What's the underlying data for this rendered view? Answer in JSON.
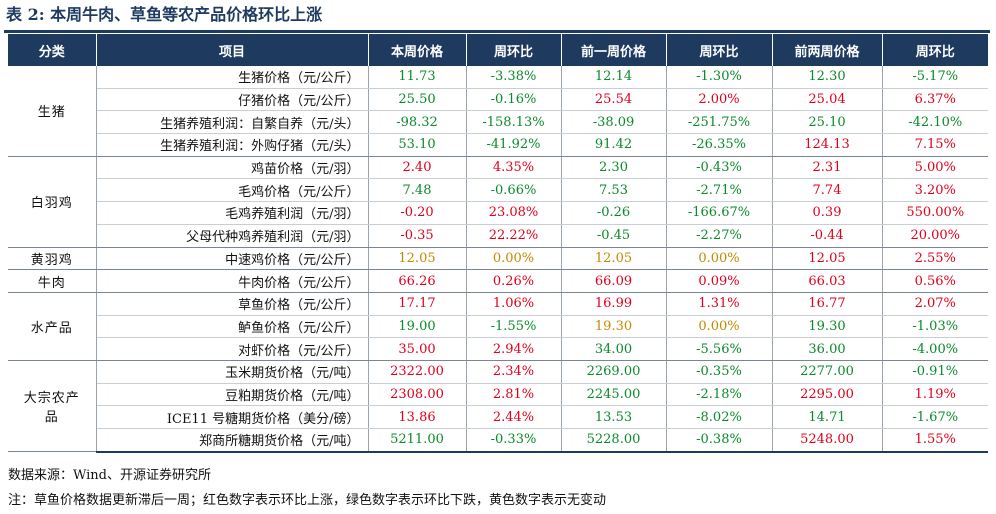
{
  "title": "表 2:  本周牛肉、草鱼等农产品价格环比上涨",
  "headers": [
    "分类",
    "项目",
    "本周价格",
    "周环比",
    "前一周价格",
    "周环比",
    "前两周价格",
    "周环比"
  ],
  "rows": [
    {
      "cat": "生猪",
      "span": 4,
      "item": "生猪价格（元/公斤）",
      "v": [
        [
          "11.73",
          "down"
        ],
        [
          "-3.38%",
          "down"
        ],
        [
          "12.14",
          "down"
        ],
        [
          "-1.30%",
          "down"
        ],
        [
          "12.30",
          "down"
        ],
        [
          "-5.17%",
          "down"
        ]
      ]
    },
    {
      "item": "仔猪价格（元/公斤）",
      "v": [
        [
          "25.50",
          "down"
        ],
        [
          "-0.16%",
          "down"
        ],
        [
          "25.54",
          "up"
        ],
        [
          "2.00%",
          "up"
        ],
        [
          "25.04",
          "up"
        ],
        [
          "6.37%",
          "up"
        ]
      ]
    },
    {
      "item": "生猪养殖利润：自繁自养（元/头）",
      "v": [
        [
          "-98.32",
          "down"
        ],
        [
          "-158.13%",
          "down"
        ],
        [
          "-38.09",
          "down"
        ],
        [
          "-251.75%",
          "down"
        ],
        [
          "25.10",
          "down"
        ],
        [
          "-42.10%",
          "down"
        ]
      ]
    },
    {
      "item": "生猪养殖利润：外购仔猪（元/头）",
      "v": [
        [
          "53.10",
          "down"
        ],
        [
          "-41.92%",
          "down"
        ],
        [
          "91.42",
          "down"
        ],
        [
          "-26.35%",
          "down"
        ],
        [
          "124.13",
          "up"
        ],
        [
          "7.15%",
          "up"
        ]
      ]
    },
    {
      "cat": "白羽鸡",
      "span": 4,
      "item": "鸡苗价格（元/羽）",
      "v": [
        [
          "2.40",
          "up"
        ],
        [
          "4.35%",
          "up"
        ],
        [
          "2.30",
          "down"
        ],
        [
          "-0.43%",
          "down"
        ],
        [
          "2.31",
          "up"
        ],
        [
          "5.00%",
          "up"
        ]
      ]
    },
    {
      "item": "毛鸡价格（元/公斤）",
      "v": [
        [
          "7.48",
          "down"
        ],
        [
          "-0.66%",
          "down"
        ],
        [
          "7.53",
          "down"
        ],
        [
          "-2.71%",
          "down"
        ],
        [
          "7.74",
          "up"
        ],
        [
          "3.20%",
          "up"
        ]
      ]
    },
    {
      "item": "毛鸡养殖利润（元/羽）",
      "v": [
        [
          "-0.20",
          "up"
        ],
        [
          "23.08%",
          "up"
        ],
        [
          "-0.26",
          "down"
        ],
        [
          "-166.67%",
          "down"
        ],
        [
          "0.39",
          "up"
        ],
        [
          "550.00%",
          "up"
        ]
      ]
    },
    {
      "item": "父母代种鸡养殖利润（元/羽）",
      "v": [
        [
          "-0.35",
          "up"
        ],
        [
          "22.22%",
          "up"
        ],
        [
          "-0.45",
          "down"
        ],
        [
          "-2.27%",
          "down"
        ],
        [
          "-0.44",
          "up"
        ],
        [
          "20.00%",
          "up"
        ]
      ]
    },
    {
      "cat": "黄羽鸡",
      "span": 1,
      "item": "中速鸡价格（元/公斤）",
      "v": [
        [
          "12.05",
          "flat"
        ],
        [
          "0.00%",
          "flat"
        ],
        [
          "12.05",
          "flat"
        ],
        [
          "0.00%",
          "flat"
        ],
        [
          "12.05",
          "up"
        ],
        [
          "2.55%",
          "up"
        ]
      ]
    },
    {
      "cat": "牛肉",
      "span": 1,
      "item": "牛肉价格（元/公斤）",
      "v": [
        [
          "66.26",
          "up"
        ],
        [
          "0.26%",
          "up"
        ],
        [
          "66.09",
          "up"
        ],
        [
          "0.09%",
          "up"
        ],
        [
          "66.03",
          "up"
        ],
        [
          "0.56%",
          "up"
        ]
      ]
    },
    {
      "cat": "水产品",
      "span": 3,
      "item": "草鱼价格（元/公斤）",
      "v": [
        [
          "17.17",
          "up"
        ],
        [
          "1.06%",
          "up"
        ],
        [
          "16.99",
          "up"
        ],
        [
          "1.31%",
          "up"
        ],
        [
          "16.77",
          "up"
        ],
        [
          "2.07%",
          "up"
        ]
      ]
    },
    {
      "item": "鲈鱼价格（元/公斤）",
      "v": [
        [
          "19.00",
          "down"
        ],
        [
          "-1.55%",
          "down"
        ],
        [
          "19.30",
          "flat"
        ],
        [
          "0.00%",
          "flat"
        ],
        [
          "19.30",
          "down"
        ],
        [
          "-1.03%",
          "down"
        ]
      ]
    },
    {
      "item": "对虾价格（元/公斤）",
      "v": [
        [
          "35.00",
          "up"
        ],
        [
          "2.94%",
          "up"
        ],
        [
          "34.00",
          "down"
        ],
        [
          "-5.56%",
          "down"
        ],
        [
          "36.00",
          "down"
        ],
        [
          "-4.00%",
          "down"
        ]
      ]
    },
    {
      "cat": "大宗农产\n品",
      "span": 4,
      "item": "玉米期货价格（元/吨）",
      "v": [
        [
          "2322.00",
          "up"
        ],
        [
          "2.34%",
          "up"
        ],
        [
          "2269.00",
          "down"
        ],
        [
          "-0.35%",
          "down"
        ],
        [
          "2277.00",
          "down"
        ],
        [
          "-0.91%",
          "down"
        ]
      ]
    },
    {
      "item": "豆粕期货价格（元/吨）",
      "v": [
        [
          "2308.00",
          "up"
        ],
        [
          "2.81%",
          "up"
        ],
        [
          "2245.00",
          "down"
        ],
        [
          "-2.18%",
          "down"
        ],
        [
          "2295.00",
          "up"
        ],
        [
          "1.19%",
          "up"
        ]
      ]
    },
    {
      "item": "ICE11 号糖期货价格（美分/磅）",
      "v": [
        [
          "13.86",
          "up"
        ],
        [
          "2.44%",
          "up"
        ],
        [
          "13.53",
          "down"
        ],
        [
          "-8.02%",
          "down"
        ],
        [
          "14.71",
          "down"
        ],
        [
          "-1.67%",
          "down"
        ]
      ]
    },
    {
      "item": "郑商所糖期货价格（元/吨）",
      "v": [
        [
          "5211.00",
          "down"
        ],
        [
          "-0.33%",
          "down"
        ],
        [
          "5228.00",
          "down"
        ],
        [
          "-0.38%",
          "down"
        ],
        [
          "5248.00",
          "up"
        ],
        [
          "1.55%",
          "up"
        ]
      ]
    }
  ],
  "footnotes": {
    "source": "数据来源：Wind、开源证券研究所",
    "note": "注：草鱼价格数据更新滞后一周；红色数字表示环比上涨，绿色数字表示环比下跌，黄色数字表示无变动"
  },
  "colors": {
    "header_bg": "#1f3a5f",
    "up": "#e0001b",
    "down": "#0a8a2a",
    "flat": "#c28a00"
  }
}
